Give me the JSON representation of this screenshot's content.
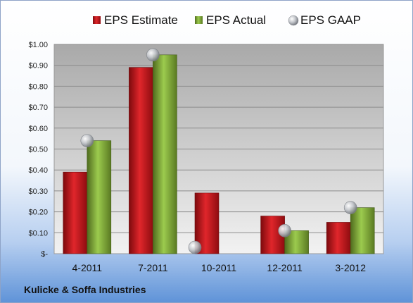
{
  "company": "Kulicke & Soffa Industries",
  "colors": {
    "estimate": "#c0161c",
    "actual": "#7fa43a",
    "gaap": "#b8bcc2"
  },
  "chart_data": {
    "type": "bar",
    "title": "",
    "xlabel": "",
    "ylabel": "",
    "categories": [
      "4-2011",
      "7-2011",
      "10-2011",
      "12-2011",
      "3-2012"
    ],
    "series": [
      {
        "name": "EPS Estimate",
        "kind": "bar",
        "values": [
          0.39,
          0.89,
          0.29,
          0.18,
          0.15
        ]
      },
      {
        "name": "EPS Actual",
        "kind": "bar",
        "values": [
          0.54,
          0.95,
          null,
          0.11,
          0.22
        ]
      },
      {
        "name": "EPS GAAP",
        "kind": "marker",
        "values": [
          0.54,
          0.95,
          0.03,
          0.11,
          0.22
        ]
      }
    ],
    "ylim": [
      0,
      1.0
    ],
    "yticks": [
      {
        "value": 0,
        "label": "$-"
      },
      {
        "value": 0.1,
        "label": "$0.10"
      },
      {
        "value": 0.2,
        "label": "$0.20"
      },
      {
        "value": 0.3,
        "label": "$0.30"
      },
      {
        "value": 0.4,
        "label": "$0.40"
      },
      {
        "value": 0.5,
        "label": "$0.50"
      },
      {
        "value": 0.6,
        "label": "$0.60"
      },
      {
        "value": 0.7,
        "label": "$0.70"
      },
      {
        "value": 0.8,
        "label": "$0.80"
      },
      {
        "value": 0.9,
        "label": "$0.90"
      },
      {
        "value": 1.0,
        "label": "$1.00"
      }
    ],
    "grid": true,
    "legend_position": "top"
  }
}
